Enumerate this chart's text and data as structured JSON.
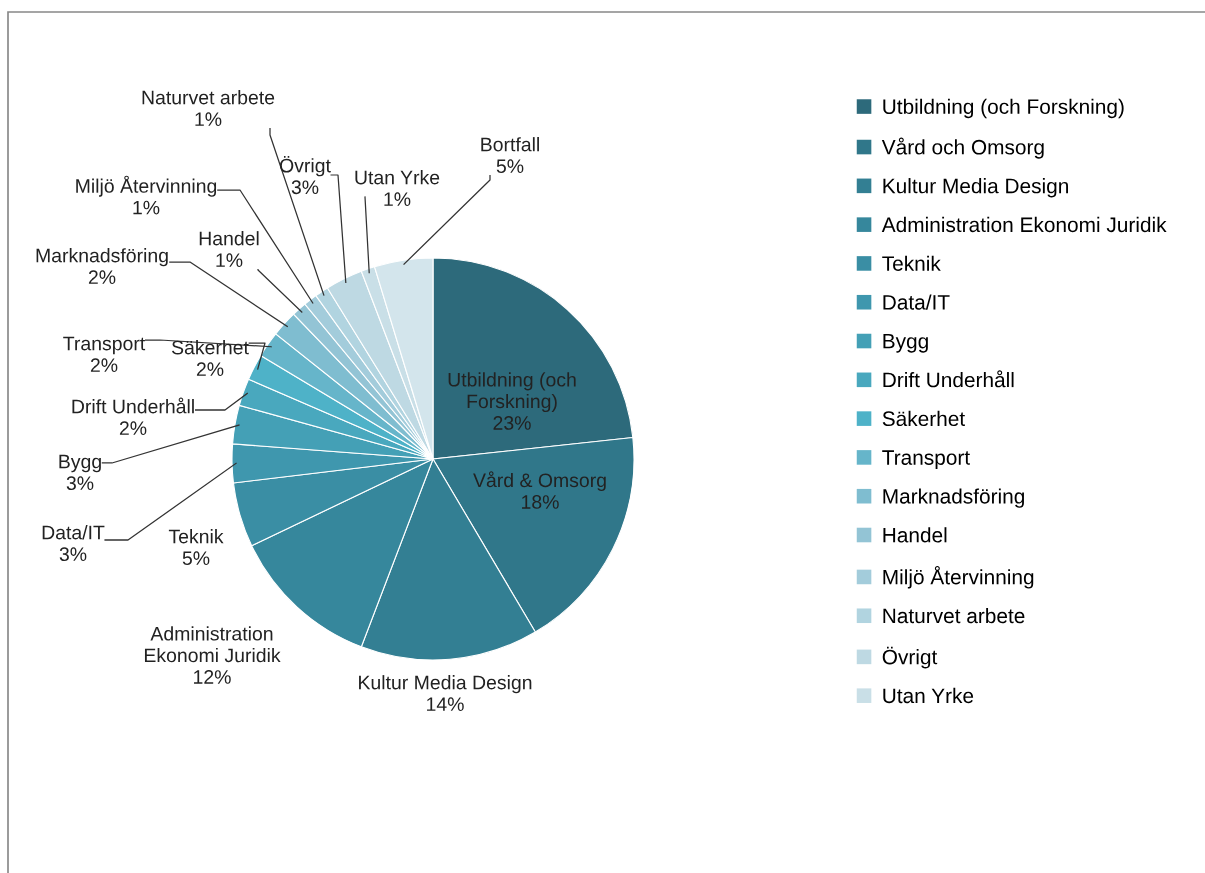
{
  "chart_data": {
    "type": "pie",
    "categories": [
      "Utbildning (och Forskning)",
      "Vård och Omsorg",
      "Kultur Media Design",
      "Administration Ekonomi Juridik",
      "Teknik",
      "Data/IT",
      "Bygg",
      "Drift Underhåll",
      "Säkerhet",
      "Transport",
      "Marknadsföring",
      "Handel",
      "Miljö Återvinning",
      "Naturvet arbete",
      "Övrigt",
      "Utan Yrke",
      null
    ],
    "values": [
      23.3,
      18.2,
      14.3,
      12.1,
      5.2,
      3.1,
      3.1,
      2.2,
      2.1,
      2.1,
      2.1,
      1.2,
      1.1,
      1.1,
      3.0,
      1.1,
      4.7
    ],
    "colors": [
      "#2d6a7b",
      "#30778a",
      "#337f93",
      "#36879c",
      "#3a8ea4",
      "#3f97ae",
      "#44a0b6",
      "#49a8be",
      "#4eb2c8",
      "#66b5ca",
      "#7fbdd0",
      "#93c4d5",
      "#a3ccdb",
      "#b1d4e0",
      "#bed9e3",
      "#c9dfe7",
      "#d3e5ec"
    ],
    "value_labels": [
      "Utbildning (och\nForskning)\n23%",
      "Vård & Omsorg\n18%",
      "Kultur Media Design\n14%",
      "Administration\nEkonomi Juridik\n12%",
      "Teknik\n5%",
      "Data/IT\n3%",
      "Bygg\n3%",
      "Drift Underhåll\n2%",
      "Säkerhet\n2%",
      "Transport\n2%",
      "Marknadsföring\n2%",
      "Handel\n1%",
      "Miljö Återvinning\n1%",
      "Naturvet arbete\n1%",
      "Övrigt\n3%",
      "Utan Yrke\n1%",
      "Bortfall\n5%"
    ],
    "legend": "right"
  }
}
